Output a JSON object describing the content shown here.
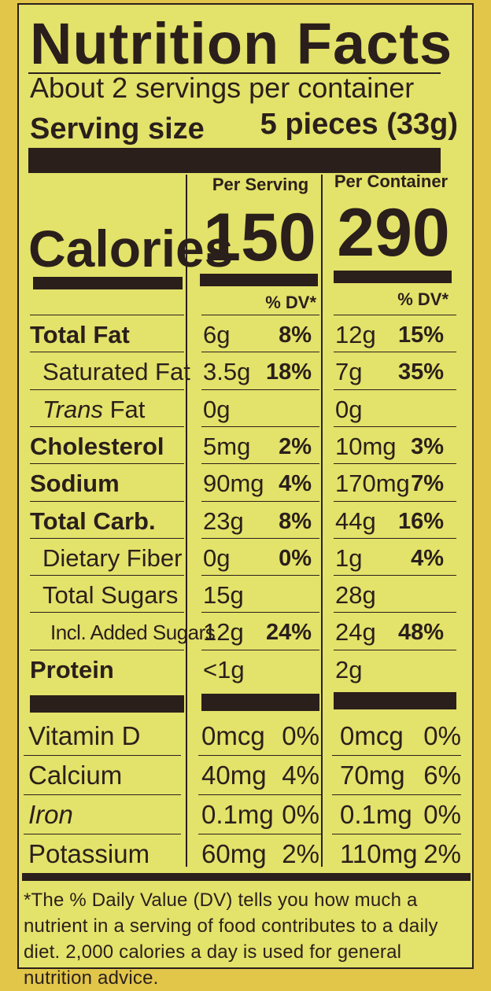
{
  "header": {
    "title": "Nutrition Facts",
    "servings": "About 2 servings per container",
    "serving_size_label": "Serving size",
    "serving_size_value": "5 pieces (33g)"
  },
  "columns": {
    "per_serving": "Per Serving",
    "per_container": "Per Container"
  },
  "calories": {
    "label": "Calories",
    "per_serving": "150",
    "per_container": "290"
  },
  "dv_header": "% DV*",
  "nutrients": [
    {
      "name": "Total Fat",
      "style": "bold",
      "serving_amount": "6g",
      "serving_dv": "8%",
      "container_amount": "12g",
      "container_dv": "15%"
    },
    {
      "name": "Saturated Fat",
      "style": "indent",
      "serving_amount": "3.5g",
      "serving_dv": "18%",
      "container_amount": "7g",
      "container_dv": "35%"
    },
    {
      "name_italic": "Trans",
      "name_rest": " Fat",
      "style": "indent",
      "serving_amount": "0g",
      "serving_dv": "",
      "container_amount": "0g",
      "container_dv": ""
    },
    {
      "name": "Cholesterol",
      "style": "bold",
      "serving_amount": "5mg",
      "serving_dv": "2%",
      "container_amount": "10mg",
      "container_dv": "3%"
    },
    {
      "name": "Sodium",
      "style": "bold",
      "serving_amount": "90mg",
      "serving_dv": "4%",
      "container_amount": "170mg",
      "container_dv": "7%"
    },
    {
      "name": "Total Carb.",
      "style": "bold",
      "serving_amount": "23g",
      "serving_dv": "8%",
      "container_amount": "44g",
      "container_dv": "16%"
    },
    {
      "name": "Dietary Fiber",
      "style": "indent",
      "serving_amount": "0g",
      "serving_dv": "0%",
      "container_amount": "1g",
      "container_dv": "4%"
    },
    {
      "name": "Total Sugars",
      "style": "indent",
      "serving_amount": "15g",
      "serving_dv": "",
      "container_amount": "28g",
      "container_dv": ""
    },
    {
      "name": "Incl. Added Sugars",
      "style": "indent2",
      "serving_amount": "12g",
      "serving_dv": "24%",
      "container_amount": "24g",
      "container_dv": "48%"
    },
    {
      "name": "Protein",
      "style": "bold",
      "serving_amount": "<1g",
      "serving_dv": "",
      "container_amount": "2g",
      "container_dv": ""
    }
  ],
  "vitamins": [
    {
      "name": "Vitamin D",
      "serving_amount": "0mcg",
      "serving_dv": "0%",
      "container_amount": "0mcg",
      "container_dv": "0%"
    },
    {
      "name": "Calcium",
      "serving_amount": "40mg",
      "serving_dv": "4%",
      "container_amount": "70mg",
      "container_dv": "6%"
    },
    {
      "name": "Iron",
      "italic": true,
      "serving_amount": "0.1mg",
      "serving_dv": "0%",
      "container_amount": "0.1mg",
      "container_dv": "0%"
    },
    {
      "name": "Potassium",
      "serving_amount": "60mg",
      "serving_dv": "2%",
      "container_amount": "110mg",
      "container_dv": "2%"
    }
  ],
  "footnote": "*The % Daily Value (DV) tells you how much a nutrient in a serving of food contributes to a daily diet. 2,000 calories a day is used for general nutrition advice."
}
